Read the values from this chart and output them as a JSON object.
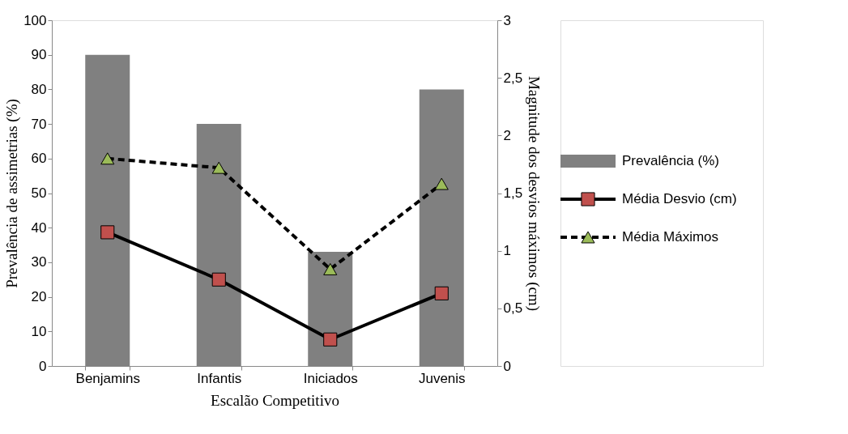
{
  "chart_data": {
    "type": "bar",
    "xlabel": "Escalão Competitivo",
    "ylabel": "Prevalência de assimetrias (%)",
    "y2label": "Magnitude dos desvios máximos (cm)",
    "categories": [
      "Benjamins",
      "Infantis",
      "Iniciados",
      "Juvenis"
    ],
    "series": [
      {
        "name": "Prevalência (%)",
        "type": "bar",
        "color": "#808080",
        "values": [
          90,
          70,
          33,
          80
        ]
      },
      {
        "name": "Média Desvio (cm)",
        "type": "line",
        "axis": "y2",
        "color": "#000000",
        "colors": [
          "#c0504d",
          "#c0504d",
          "#c0504d",
          "#c0504d"
        ],
        "marker": "square",
        "line_style": "solid",
        "values": [
          1.16,
          0.75,
          0.23,
          0.63
        ]
      },
      {
        "name": "Média Máximos",
        "type": "line",
        "axis": "y2",
        "color": "#000000",
        "colors": [
          "#9bbb59",
          "#9bbb59",
          "#9bbb59",
          "#9bbb59"
        ],
        "marker": "triangle",
        "line_style": "dashed",
        "values": [
          1.8,
          1.72,
          0.84,
          1.58
        ]
      }
    ],
    "ylim": [
      0,
      100
    ],
    "yticks": [
      0,
      10,
      20,
      30,
      40,
      50,
      60,
      70,
      80,
      90,
      100
    ],
    "y2lim": [
      0,
      3
    ],
    "y2ticks": [
      0,
      {
        "value": 0.5,
        "label": "0,5"
      },
      1,
      {
        "value": 1.5,
        "label": "1,5"
      },
      2,
      {
        "value": 2.5,
        "label": "2,5"
      },
      3
    ],
    "grid": false,
    "legend": "right"
  }
}
